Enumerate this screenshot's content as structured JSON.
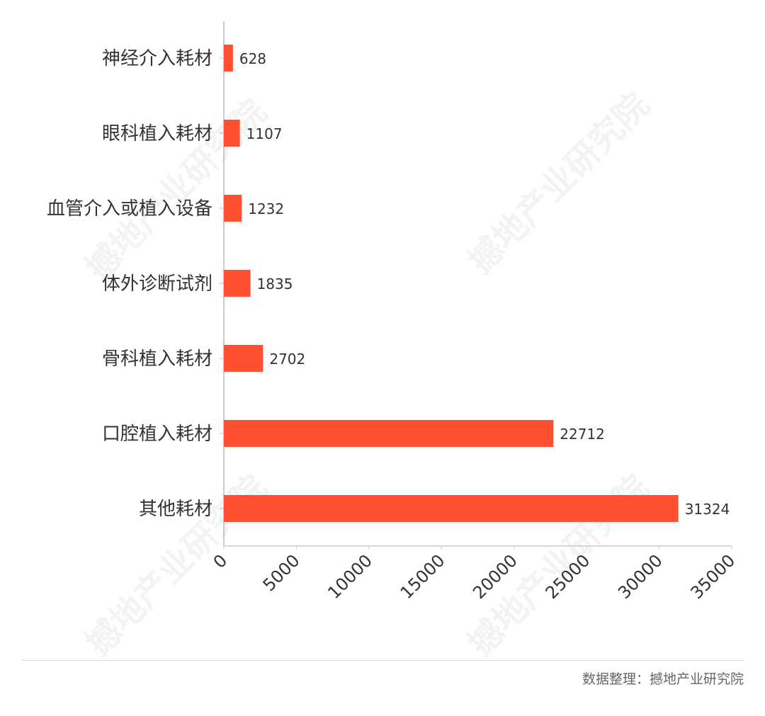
{
  "chart_data": {
    "type": "bar",
    "orientation": "horizontal",
    "categories": [
      "神经介入耗材",
      "眼科植入耗材",
      "血管介入或植入设备",
      "体外诊断试剂",
      "骨科植入耗材",
      "口腔植入耗材",
      "其他耗材"
    ],
    "values": [
      628,
      1107,
      1232,
      1835,
      2702,
      22712,
      31324
    ],
    "xlim": [
      0,
      35000
    ],
    "xticks": [
      "0",
      "5000",
      "10000",
      "15000",
      "20000",
      "25000",
      "30000",
      "35000"
    ],
    "xtick_values": [
      0,
      5000,
      10000,
      15000,
      20000,
      25000,
      30000,
      35000
    ],
    "xlabel": "",
    "ylabel": "",
    "title": "",
    "grid": false,
    "data_labels": true,
    "bar_color": "#ff5030"
  },
  "footer": {
    "source": "数据整理：撼地产业研究院"
  },
  "watermark": "撼地产业研究院"
}
